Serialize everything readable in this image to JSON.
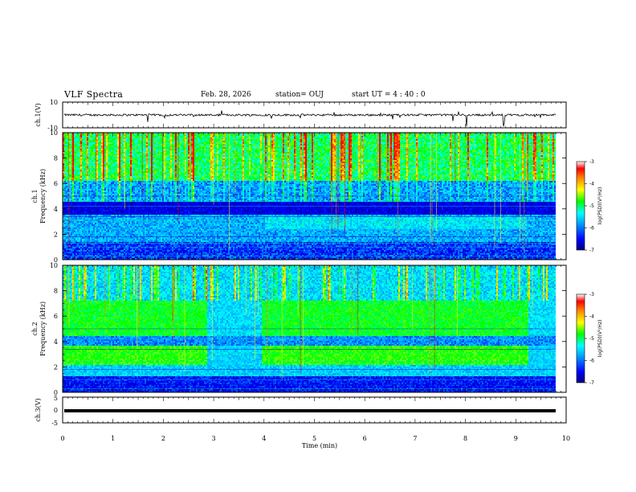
{
  "header": {
    "title": "VLF Spectra",
    "date": "Feb. 28, 2026",
    "station": "station= OUJ",
    "start": "start  UT =   4 : 40 : 0"
  },
  "chart_data": [
    {
      "type": "line",
      "panel": "ch1-waveform",
      "ylabel": "ch.1(V)",
      "ylim": [
        -10,
        10
      ],
      "yticks": [
        "10",
        "-10"
      ],
      "xlim": [
        0,
        10
      ],
      "baseline_value": 0
    },
    {
      "type": "heatmap",
      "panel": "ch1-spectrogram",
      "ylabel": "ch.1\nFrequency  (kHz)",
      "ylim": [
        0,
        10
      ],
      "yticks": [
        "0",
        "2",
        "4",
        "6",
        "8",
        "10"
      ],
      "xlim": [
        0,
        10
      ],
      "colorbar": {
        "label": "log(PSD)(V²/Hz)",
        "range": [
          -7,
          -3
        ],
        "ticks": [
          "-3",
          "-4",
          "-5",
          "-6",
          "-7"
        ]
      }
    },
    {
      "type": "heatmap",
      "panel": "ch2-spectrogram",
      "ylabel": "ch.2\nFrequency  (kHz)",
      "ylim": [
        0,
        10
      ],
      "yticks": [
        "0",
        "2",
        "4",
        "6",
        "8",
        "10"
      ],
      "xlim": [
        0,
        10
      ],
      "colorbar": {
        "label": "log(PSD)(V²/Hz)",
        "range": [
          -7,
          -3
        ],
        "ticks": [
          "-3",
          "-4",
          "-5",
          "-6",
          "-7"
        ]
      }
    },
    {
      "type": "line",
      "panel": "ch3-waveform",
      "ylabel": "ch.3(V)",
      "ylim": [
        -5,
        5
      ],
      "yticks": [
        "5",
        "0",
        "-5"
      ],
      "xlim": [
        0,
        10
      ],
      "baseline_value": 0
    }
  ],
  "xaxis": {
    "label": "Time  (min)",
    "ticks": [
      "0",
      "1",
      "2",
      "3",
      "4",
      "5",
      "6",
      "7",
      "8",
      "9",
      "10"
    ],
    "range": [
      0,
      10
    ]
  },
  "colors": {
    "cmap": [
      "#000080",
      "#0000ff",
      "#00a0ff",
      "#00ffff",
      "#00ff00",
      "#ffff00",
      "#ff8000",
      "#ff0000"
    ],
    "background": "#ffffff",
    "ink": "#000000"
  }
}
